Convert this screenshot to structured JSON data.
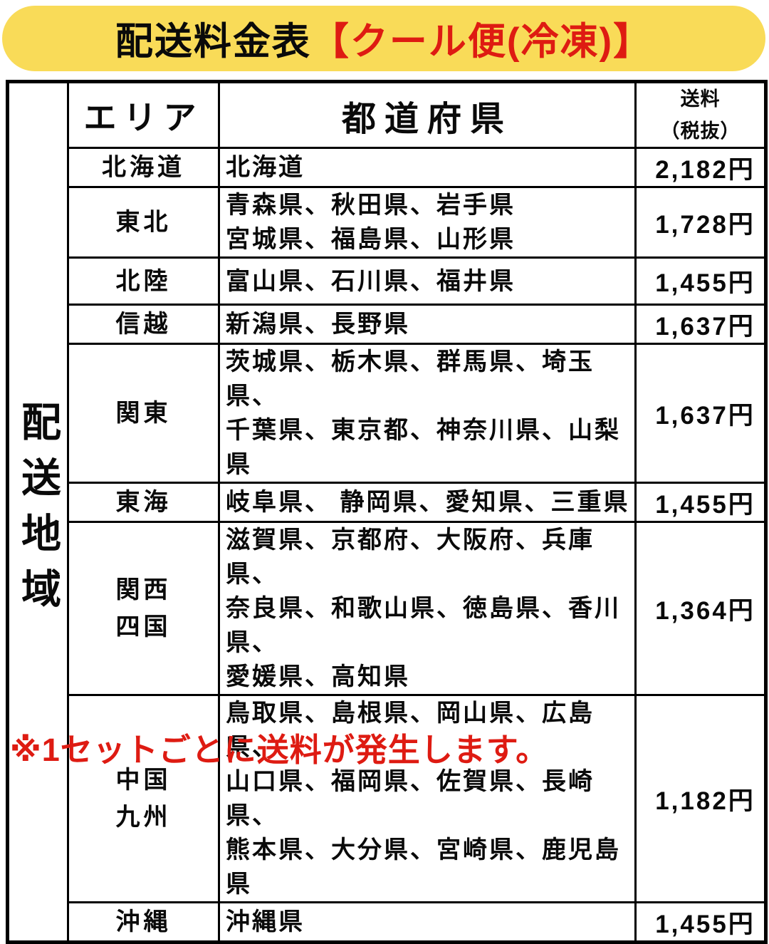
{
  "banner": {
    "title_black": "配送料金表",
    "title_red": "【クール便(冷凍)】"
  },
  "colors": {
    "banner_yellow": "#F9DB58",
    "accent_red": "#DE1B12",
    "table_border": "#000000"
  },
  "table": {
    "side_label": "配送地域",
    "headers": {
      "area": "エリア",
      "prefectures": "都道府県",
      "fee": "送料\n（税抜）"
    },
    "rows": [
      {
        "area": "北海道",
        "prefectures": [
          "北海道"
        ],
        "fee": "2,182円"
      },
      {
        "area": "東北",
        "prefectures": [
          "青森県、秋田県、岩手県",
          "宮城県、福島県、山形県"
        ],
        "fee": "1,728円"
      },
      {
        "area": "北陸",
        "prefectures": [
          "富山県、石川県、福井県"
        ],
        "fee": "1,455円"
      },
      {
        "area": "信越",
        "prefectures": [
          "新潟県、長野県"
        ],
        "fee": "1,637円"
      },
      {
        "area": "関東",
        "prefectures": [
          "茨城県、栃木県、群馬県、埼玉県、",
          "千葉県、東京都、神奈川県、山梨県"
        ],
        "fee": "1,637円"
      },
      {
        "area": "東海",
        "prefectures": [
          "岐阜県、 静岡県、愛知県、三重県"
        ],
        "fee": "1,455円"
      },
      {
        "area": "関西\n四国",
        "prefectures": [
          "滋賀県、京都府、大阪府、兵庫県、",
          "奈良県、和歌山県、徳島県、香川県、",
          "愛媛県、高知県"
        ],
        "fee": "1,364円"
      },
      {
        "area": "中国\n九州",
        "prefectures": [
          "鳥取県、島根県、岡山県、広島県、",
          "山口県、福岡県、佐賀県、長崎県、",
          "熊本県、大分県、宮崎県、鹿児島県"
        ],
        "fee": "1,182円"
      },
      {
        "area": "沖縄",
        "prefectures": [
          "沖縄県"
        ],
        "fee": "1,455円"
      }
    ]
  },
  "footer": {
    "note": "※1セットごとに送料が発生します。"
  }
}
